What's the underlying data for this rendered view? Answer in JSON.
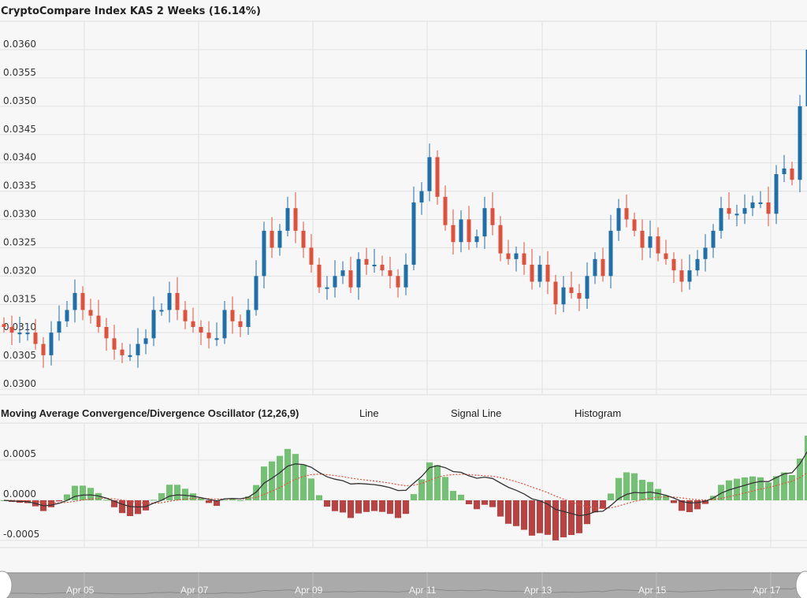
{
  "chart_data": [
    {
      "type": "candlestick",
      "title": "CryptoCompare Index KAS 2 Weeks (16.14%)",
      "y_ticks": [
        "0.0300",
        "0.0305",
        "0.0310",
        "0.0315",
        "0.0320",
        "0.0325",
        "0.0330",
        "0.0335",
        "0.0340",
        "0.0345",
        "0.0350",
        "0.0355",
        "0.0360"
      ],
      "ylim": [
        0.03,
        0.036
      ],
      "x_ticks": [
        "Apr 05",
        "Apr 07",
        "Apr 09",
        "Apr 11",
        "Apr 13",
        "Apr 15",
        "Apr 17"
      ],
      "up_color": "#1f6fa8",
      "down_color": "#e0513b",
      "closes": [
        0.0311,
        0.031,
        0.031,
        0.031,
        0.0308,
        0.0306,
        0.031,
        0.0312,
        0.0314,
        0.0317,
        0.0314,
        0.0313,
        0.0311,
        0.0309,
        0.0307,
        0.0306,
        0.0306,
        0.0308,
        0.0309,
        0.0314,
        0.0314,
        0.0317,
        0.0314,
        0.0312,
        0.0311,
        0.031,
        0.0309,
        0.0309,
        0.0314,
        0.0312,
        0.0311,
        0.0314,
        0.032,
        0.0328,
        0.0325,
        0.0328,
        0.0332,
        0.0328,
        0.0325,
        0.0322,
        0.0318,
        0.0318,
        0.032,
        0.0321,
        0.0318,
        0.0323,
        0.0322,
        0.0322,
        0.0321,
        0.032,
        0.0318,
        0.0322,
        0.0333,
        0.0335,
        0.0341,
        0.0334,
        0.0329,
        0.0326,
        0.033,
        0.0326,
        0.0327,
        0.0332,
        0.0329,
        0.0324,
        0.0323,
        0.0324,
        0.0322,
        0.0319,
        0.0322,
        0.0319,
        0.0315,
        0.0318,
        0.0317,
        0.0316,
        0.032,
        0.0323,
        0.032,
        0.0328,
        0.0332,
        0.033,
        0.0328,
        0.0325,
        0.0327,
        0.0324,
        0.0323,
        0.0321,
        0.0319,
        0.0321,
        0.0323,
        0.0325,
        0.0328,
        0.0332,
        0.0331,
        0.0331,
        0.0332,
        0.0333,
        0.0333,
        0.0331,
        0.0338,
        0.0339,
        0.0337,
        0.035,
        0.036
      ]
    },
    {
      "type": "line",
      "title": "Moving Average Convergence/Divergence Oscillator (12,26,9)",
      "legend": [
        "Line",
        "Signal Line",
        "Histogram"
      ],
      "params": [
        12,
        26,
        9
      ],
      "y_ticks": [
        "-0.0005",
        "0.0000",
        "0.0005"
      ],
      "ylim": [
        -0.00075,
        0.0009
      ],
      "line_color": "#333333",
      "signal_color": "#e0513b",
      "hist_up_color": "#5cb85c",
      "hist_down_color": "#b22222"
    }
  ],
  "navigator": {
    "labels": [
      "Apr 05",
      "Apr 07",
      "Apr 09",
      "Apr 11",
      "Apr 13",
      "Apr 15",
      "Apr 17"
    ]
  }
}
